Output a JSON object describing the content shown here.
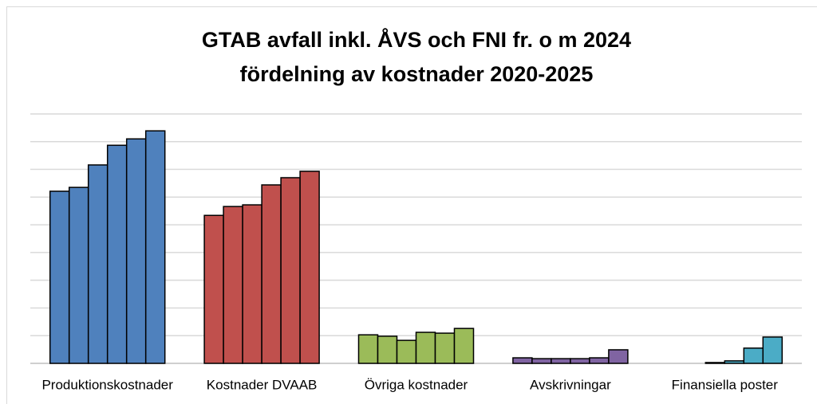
{
  "chart_data": {
    "type": "grouped-bar",
    "title": [
      "GTAB avfall inkl. ÅVS och FNI fr. o m 2024",
      "fördelning av kostnader 2020-2025"
    ],
    "categories": [
      "Produktionskostnader",
      "Kostnader DVAAB",
      "Övriga kostnader",
      "Avskrivningar",
      "Finansiella poster"
    ],
    "colors": [
      "#4f81bd",
      "#c0504d",
      "#9bbb59",
      "#8064a2",
      "#4bacc6"
    ],
    "values": [
      [
        6.21,
        6.35,
        7.16,
        7.87,
        8.1,
        8.39
      ],
      [
        5.34,
        5.66,
        5.72,
        6.44,
        6.7,
        6.93
      ],
      [
        1.03,
        0.98,
        0.83,
        1.12,
        1.09,
        1.26
      ],
      [
        0.2,
        0.17,
        0.17,
        0.17,
        0.2,
        0.49
      ],
      [
        0.0,
        0.0,
        0.03,
        0.09,
        0.55,
        0.95
      ]
    ],
    "ylim": [
      0,
      9
    ],
    "yticks": [
      0,
      1,
      2,
      3,
      4,
      5,
      6,
      7,
      8,
      9
    ],
    "grid": true
  }
}
